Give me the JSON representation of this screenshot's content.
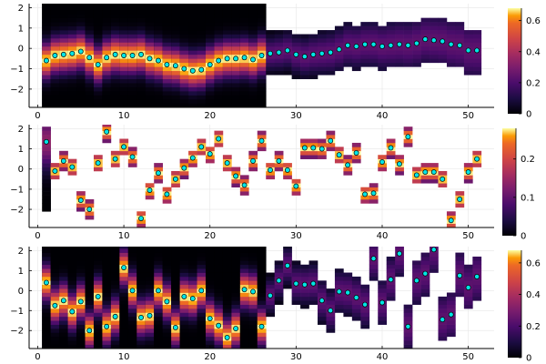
{
  "chart_data": [
    {
      "type": "heatmap",
      "xlim": [
        -1,
        53
      ],
      "ylim": [
        -2.9,
        2.2
      ],
      "xticks": [
        0,
        10,
        20,
        30,
        40,
        50
      ],
      "yticks": [
        -2,
        -1,
        0,
        1,
        2
      ],
      "grid": true,
      "colorbar": {
        "ticks": [
          0,
          0.2,
          0.4,
          0.6
        ],
        "max": 0.68
      },
      "points": [
        -0.6,
        -0.35,
        -0.3,
        -0.25,
        -0.15,
        -0.45,
        -0.8,
        -0.45,
        -0.3,
        -0.35,
        -0.35,
        -0.3,
        -0.5,
        -0.6,
        -0.8,
        -0.85,
        -1.0,
        -1.1,
        -1.05,
        -0.8,
        -0.6,
        -0.5,
        -0.5,
        -0.45,
        -0.55,
        -0.35,
        -0.25,
        -0.2,
        -0.1,
        -0.3,
        -0.4,
        -0.3,
        -0.25,
        -0.2,
        -0.05,
        0.15,
        0.1,
        0.2,
        0.2,
        0.1,
        0.15,
        0.2,
        0.15,
        0.25,
        0.45,
        0.4,
        0.35,
        0.2,
        0.15,
        -0.1,
        -0.1
      ]
    },
    {
      "type": "heatmap",
      "xlim": [
        -1,
        53
      ],
      "ylim": [
        -2.9,
        2.2
      ],
      "xticks": [
        0,
        10,
        20,
        30,
        40,
        50
      ],
      "yticks": [
        -2,
        -1,
        0,
        1,
        2
      ],
      "grid": true,
      "colorbar": {
        "ticks": [
          0,
          0.1,
          0.2
        ],
        "max": 0.28
      },
      "points": [
        1.35,
        -0.1,
        0.4,
        0.1,
        -1.55,
        -2.0,
        0.3,
        1.85,
        0.5,
        1.1,
        0.6,
        -2.45,
        -1.05,
        -0.2,
        -1.25,
        -0.5,
        0.05,
        0.55,
        1.1,
        0.75,
        1.5,
        0.3,
        -0.35,
        -0.8,
        0.4,
        1.4,
        -0.05,
        0.4,
        -0.05,
        -0.85,
        1.05,
        1.05,
        1.0,
        1.4,
        0.7,
        0.2,
        0.8,
        -1.25,
        -1.2,
        0.35,
        1.05,
        0.25,
        1.6,
        -0.3,
        -0.15,
        -0.15,
        -0.5,
        -2.55,
        -1.5,
        -0.15,
        0.5
      ]
    },
    {
      "type": "heatmap",
      "xlim": [
        -1,
        53
      ],
      "ylim": [
        -2.9,
        2.2
      ],
      "xticks": [
        0,
        10,
        20,
        30,
        40,
        50
      ],
      "yticks": [
        -2,
        -1,
        0,
        1,
        2
      ],
      "grid": true,
      "colorbar": {
        "ticks": [
          0,
          0.2,
          0.4,
          0.6
        ],
        "max": 0.68
      },
      "points": [
        0.4,
        -0.75,
        -0.5,
        -1.05,
        -0.55,
        -2.0,
        -0.3,
        -1.8,
        -1.3,
        1.15,
        0.0,
        -1.35,
        -1.25,
        0.0,
        -0.55,
        -1.85,
        -0.3,
        -0.4,
        0.0,
        -1.4,
        -1.75,
        -2.35,
        -1.9,
        0.05,
        -0.05,
        -1.8,
        -0.25,
        0.5,
        1.25,
        0.35,
        0.3,
        0.35,
        -0.5,
        -1.0,
        -0.05,
        -0.1,
        -0.35,
        -0.7,
        1.6,
        -0.6,
        0.55,
        1.85,
        -1.8,
        0.5,
        0.85,
        2.05,
        -1.45,
        -1.2,
        0.75,
        0.15,
        0.7
      ]
    }
  ]
}
